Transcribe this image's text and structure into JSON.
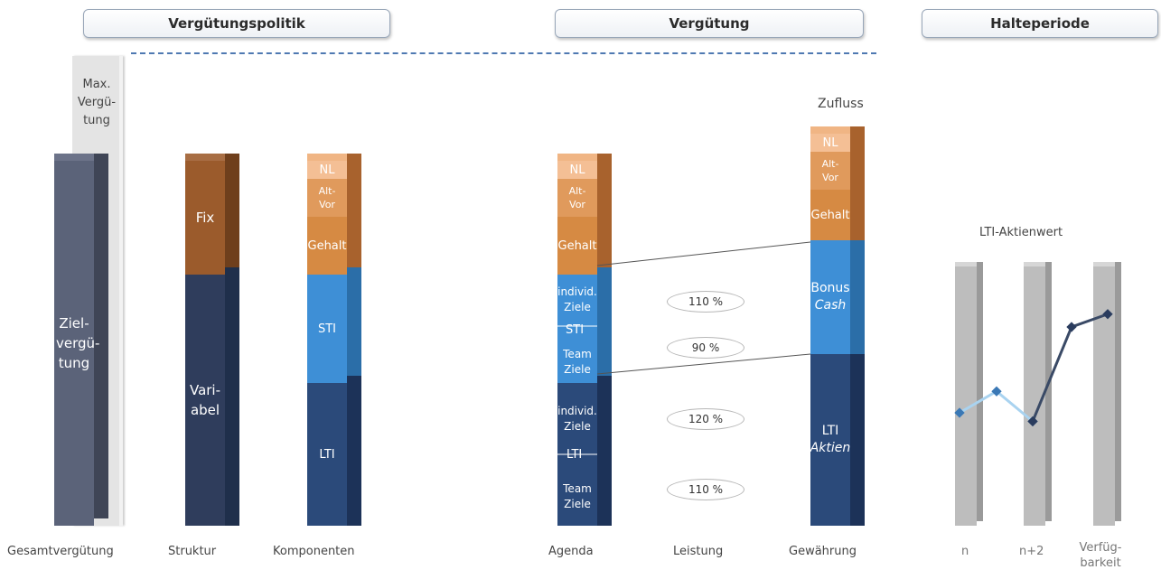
{
  "headers": {
    "policy": "Vergütungspolitik",
    "compensation": "Vergütung",
    "holding": "Halteperiode"
  },
  "max_label": "Max. Vergü- tung",
  "segments": {
    "ziel": "Ziel- vergü- tung",
    "fix": "Fix",
    "variabel": "Vari- abel",
    "nl": "NL",
    "altvor": "Alt- Vor",
    "gehalt": "Gehalt",
    "sti": "STI",
    "lti": "LTI",
    "individ": "individ. Ziele",
    "team": "Team Ziele",
    "bonus": "Bonus",
    "cash": "Cash",
    "aktien": "Aktien"
  },
  "percents": [
    "110 %",
    "90 %",
    "120 %",
    "110 %"
  ],
  "zufluss": "Zufluss",
  "lti_chart": {
    "title": "LTI-Aktienwert",
    "x_labels": [
      "n",
      "n+2",
      "Verfüg- barkeit"
    ],
    "series_light": [
      0,
      0.25,
      -0.1
    ],
    "series_dark": [
      -0.1,
      1.0,
      1.15
    ]
  },
  "bottom_labels": {
    "gesamt": "Gesamtvergütung",
    "struktur": "Struktur",
    "komponenten": "Komponenten",
    "agenda": "Agenda",
    "leistung": "Leistung",
    "gewaehrung": "Gewährung"
  },
  "colors": {
    "dark_navy": "#2b4a7a",
    "mid_blue": "#3e8fd6",
    "orange": "#d68a43",
    "brown": "#9b5b2c",
    "slate": "#5b6379",
    "grey": "#bdbdbd"
  }
}
